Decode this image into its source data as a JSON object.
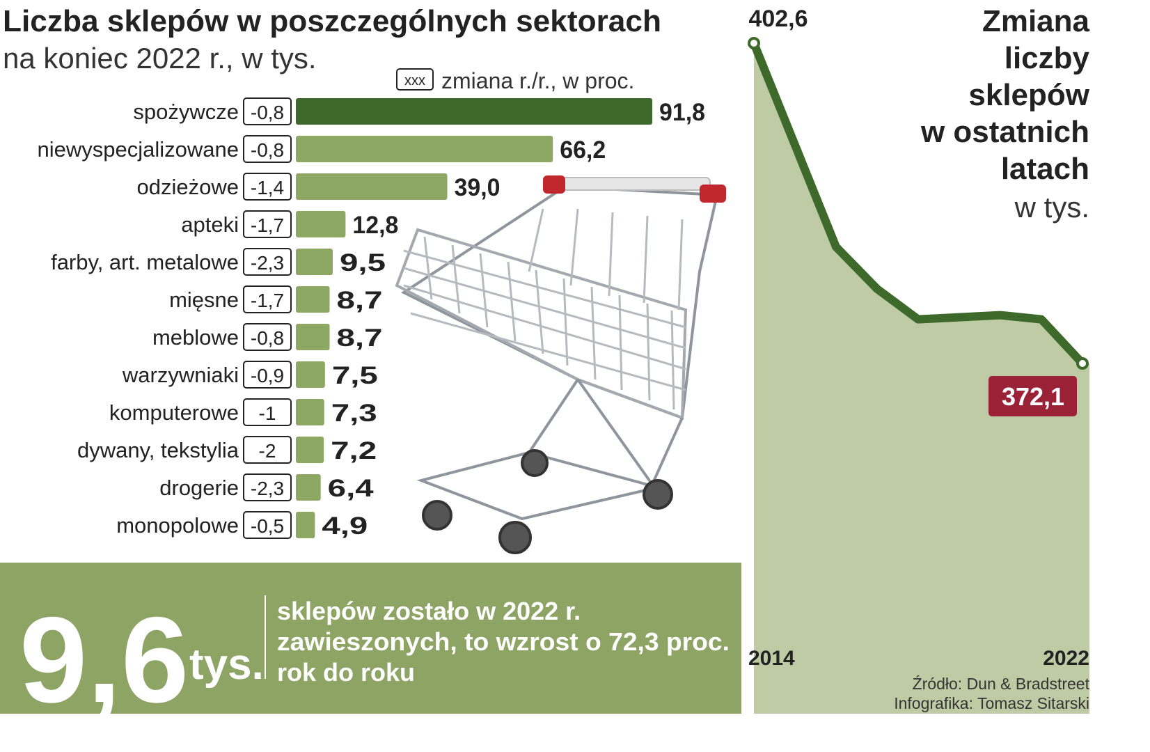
{
  "chart_data": [
    {
      "type": "hbar",
      "title": "Liczba sklepów w poszczególnych sektorach",
      "subtitle": "na koniec 2022 r., w tys.",
      "legend_box_label": "xxx",
      "legend_label": "zmiana r./r., w proc.",
      "categories": [
        "spożywcze",
        "niewyspecjalizowane",
        "odzieżowe",
        "apteki",
        "farby, art. metalowe",
        "mięsne",
        "meblowe",
        "warzywniaki",
        "komputerowe",
        "dywany, tekstylia",
        "drogerie",
        "monopolowe"
      ],
      "values": [
        91.8,
        66.2,
        39.0,
        12.8,
        9.5,
        8.7,
        8.7,
        7.5,
        7.3,
        7.2,
        6.4,
        4.9
      ],
      "value_labels": [
        "91,8",
        "66,2",
        "39,0",
        "12,8",
        "9,5",
        "8,7",
        "8,7",
        "7,5",
        "7,3",
        "7,2",
        "6,4",
        "4,9"
      ],
      "changes": [
        -0.8,
        -0.8,
        -1.4,
        -1.7,
        -2.3,
        -1.7,
        -0.8,
        -0.9,
        -1,
        -2,
        -2.3,
        -0.5
      ],
      "change_labels": [
        "-0,8",
        "-0,8",
        "-1,4",
        "-1,7",
        "-2,3",
        "-1,7",
        "-0,8",
        "-0,9",
        "-1",
        "-2",
        "-2,3",
        "-0,5"
      ],
      "colors": [
        "#3d6a2b",
        "#8ca862",
        "#8ca862",
        "#8ca862",
        "#8ca862",
        "#8ca862",
        "#8ca862",
        "#8ca862",
        "#8ca862",
        "#8ca862",
        "#8ca862",
        "#8ca862"
      ]
    },
    {
      "type": "area",
      "title": [
        "Zmiana",
        "liczby",
        "sklepów",
        "w ostatnich",
        "latach"
      ],
      "subtitle": "w tys.",
      "categories": [
        "2014",
        null,
        null,
        null,
        null,
        null,
        null,
        null,
        "2022"
      ],
      "values": [
        402.6,
        392.9,
        383.2,
        379.2,
        376.3,
        376.5,
        376.7,
        376.3,
        372.1
      ],
      "value_labels": [
        "402,6",
        null,
        null,
        null,
        null,
        null,
        null,
        null,
        "372,1"
      ],
      "color": "#3d6a2b",
      "fill": "#bfcba5"
    }
  ],
  "banner": {
    "value": "9,6",
    "unit": "tys.",
    "lines": [
      "sklepów zostało w 2022 r.",
      "zawieszonych, to wzrost o 72,3 proc.",
      "rok do roku"
    ]
  },
  "source": "Źródło: Dun & Bradstreet",
  "credit": "Infografika: Tomasz Sitarski"
}
